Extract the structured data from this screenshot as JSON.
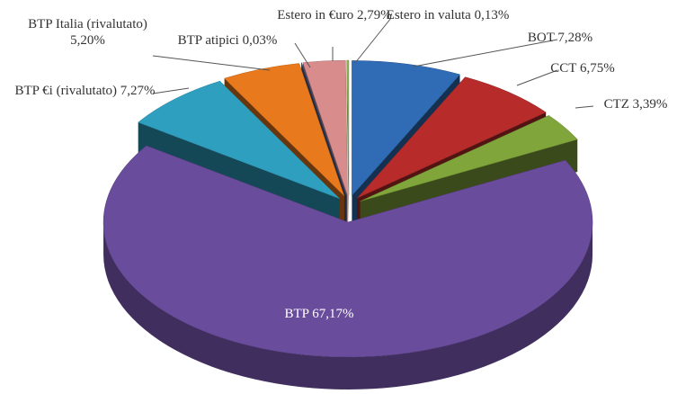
{
  "chart_data": {
    "type": "pie3d",
    "categories": [
      "BOT",
      "CCT",
      "CTZ",
      "BTP",
      "BTP €i (rivalutato)",
      "BTP Italia (rivalutato)",
      "BTP atipici",
      "Estero in €uro",
      "Estero in valuta"
    ],
    "values": [
      7.28,
      6.75,
      3.39,
      67.17,
      7.27,
      5.2,
      0.03,
      2.79,
      0.13
    ],
    "value_labels": [
      "7,28%",
      "6,75%",
      "3,39%",
      "67,17%",
      "7,27%",
      "5,20%",
      "0,03%",
      "2,79%",
      "0,13%"
    ],
    "colors": [
      "#2f6cb5",
      "#b72b2b",
      "#80a53b",
      "#6a4c9c",
      "#2f9fc0",
      "#e8791d",
      "#4b5d8c",
      "#d98c8c",
      "#8fb255"
    ]
  }
}
